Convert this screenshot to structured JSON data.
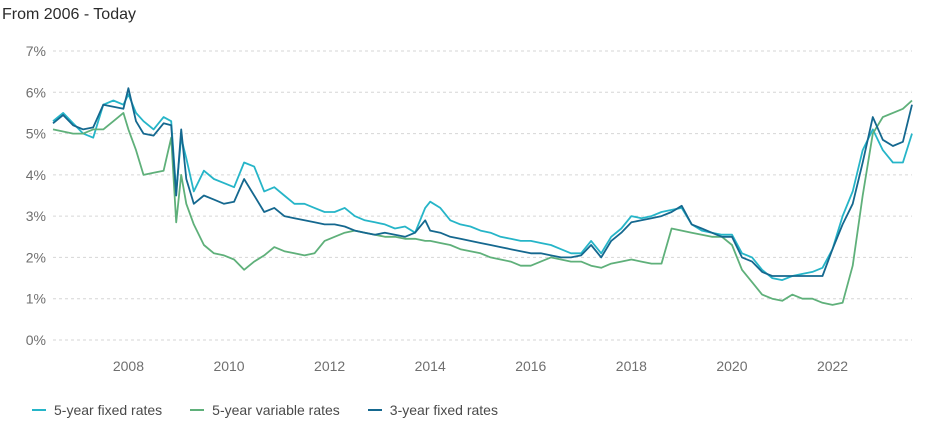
{
  "chart_data": {
    "type": "line",
    "title": "From 2006 - Today",
    "xlabel": "",
    "ylabel": "",
    "xlim": [
      2006.5,
      2023.58
    ],
    "ylim": [
      0,
      7
    ],
    "x_ticks": [
      {
        "value": 2008,
        "label": "2008"
      },
      {
        "value": 2010,
        "label": "2010"
      },
      {
        "value": 2012,
        "label": "2012"
      },
      {
        "value": 2014,
        "label": "2014"
      },
      {
        "value": 2016,
        "label": "2016"
      },
      {
        "value": 2018,
        "label": "2018"
      },
      {
        "value": 2020,
        "label": "2020"
      },
      {
        "value": 2022,
        "label": "2022"
      }
    ],
    "y_ticks": [
      {
        "value": 0,
        "label": "0%"
      },
      {
        "value": 1,
        "label": "1%"
      },
      {
        "value": 2,
        "label": "2%"
      },
      {
        "value": 3,
        "label": "3%"
      },
      {
        "value": 4,
        "label": "4%"
      },
      {
        "value": 5,
        "label": "5%"
      },
      {
        "value": 6,
        "label": "6%"
      },
      {
        "value": 7,
        "label": "7%"
      }
    ],
    "grid": true,
    "legend_position": "bottom-left",
    "series": [
      {
        "name": "5-year fixed rates",
        "color": "#26b5c8",
        "x": [
          2006.5,
          2006.7,
          2006.9,
          2007.1,
          2007.3,
          2007.5,
          2007.7,
          2007.9,
          2008.0,
          2008.15,
          2008.3,
          2008.5,
          2008.7,
          2008.85,
          2008.95,
          2009.05,
          2009.15,
          2009.3,
          2009.5,
          2009.7,
          2009.9,
          2010.1,
          2010.3,
          2010.5,
          2010.7,
          2010.9,
          2011.1,
          2011.3,
          2011.5,
          2011.7,
          2011.9,
          2012.1,
          2012.3,
          2012.5,
          2012.7,
          2012.9,
          2013.1,
          2013.3,
          2013.5,
          2013.7,
          2013.9,
          2014.0,
          2014.2,
          2014.4,
          2014.6,
          2014.8,
          2015.0,
          2015.2,
          2015.4,
          2015.6,
          2015.8,
          2016.0,
          2016.2,
          2016.4,
          2016.6,
          2016.8,
          2017.0,
          2017.2,
          2017.4,
          2017.6,
          2017.8,
          2018.0,
          2018.2,
          2018.4,
          2018.6,
          2018.8,
          2019.0,
          2019.2,
          2019.4,
          2019.6,
          2019.8,
          2020.0,
          2020.2,
          2020.4,
          2020.6,
          2020.8,
          2021.0,
          2021.2,
          2021.4,
          2021.6,
          2021.8,
          2022.0,
          2022.2,
          2022.4,
          2022.6,
          2022.8,
          2023.0,
          2023.2,
          2023.4,
          2023.58
        ],
        "y": [
          5.3,
          5.5,
          5.25,
          5.0,
          4.9,
          5.7,
          5.8,
          5.7,
          5.95,
          5.5,
          5.3,
          5.1,
          5.4,
          5.3,
          3.6,
          4.9,
          4.4,
          3.6,
          4.1,
          3.9,
          3.8,
          3.7,
          4.3,
          4.2,
          3.6,
          3.7,
          3.5,
          3.3,
          3.3,
          3.2,
          3.1,
          3.1,
          3.2,
          3.0,
          2.9,
          2.85,
          2.8,
          2.7,
          2.75,
          2.6,
          3.2,
          3.35,
          3.2,
          2.9,
          2.8,
          2.75,
          2.65,
          2.6,
          2.5,
          2.45,
          2.4,
          2.4,
          2.35,
          2.3,
          2.2,
          2.1,
          2.1,
          2.4,
          2.1,
          2.5,
          2.7,
          3.0,
          2.95,
          3.0,
          3.1,
          3.15,
          3.2,
          2.8,
          2.65,
          2.6,
          2.55,
          2.55,
          2.1,
          2.0,
          1.7,
          1.5,
          1.45,
          1.55,
          1.6,
          1.65,
          1.75,
          2.2,
          3.0,
          3.6,
          4.6,
          5.1,
          4.6,
          4.3,
          4.3,
          5.0
        ]
      },
      {
        "name": "5-year variable rates",
        "color": "#5fb07a",
        "x": [
          2006.5,
          2006.7,
          2006.9,
          2007.1,
          2007.3,
          2007.5,
          2007.7,
          2007.9,
          2008.0,
          2008.15,
          2008.3,
          2008.5,
          2008.7,
          2008.85,
          2008.95,
          2009.05,
          2009.15,
          2009.3,
          2009.5,
          2009.7,
          2009.9,
          2010.1,
          2010.3,
          2010.5,
          2010.7,
          2010.9,
          2011.1,
          2011.3,
          2011.5,
          2011.7,
          2011.9,
          2012.1,
          2012.3,
          2012.5,
          2012.7,
          2012.9,
          2013.1,
          2013.3,
          2013.5,
          2013.7,
          2013.9,
          2014.0,
          2014.2,
          2014.4,
          2014.6,
          2014.8,
          2015.0,
          2015.2,
          2015.4,
          2015.6,
          2015.8,
          2016.0,
          2016.2,
          2016.4,
          2016.6,
          2016.8,
          2017.0,
          2017.2,
          2017.4,
          2017.6,
          2017.8,
          2018.0,
          2018.2,
          2018.4,
          2018.6,
          2018.8,
          2019.0,
          2019.2,
          2019.4,
          2019.6,
          2019.8,
          2020.0,
          2020.2,
          2020.4,
          2020.6,
          2020.8,
          2021.0,
          2021.2,
          2021.4,
          2021.6,
          2021.8,
          2022.0,
          2022.2,
          2022.4,
          2022.6,
          2022.8,
          2023.0,
          2023.2,
          2023.4,
          2023.58
        ],
        "y": [
          5.1,
          5.05,
          5.0,
          5.0,
          5.1,
          5.1,
          5.3,
          5.5,
          5.1,
          4.6,
          4.0,
          4.05,
          4.1,
          4.9,
          2.85,
          4.0,
          3.3,
          2.8,
          2.3,
          2.1,
          2.05,
          1.95,
          1.7,
          1.9,
          2.05,
          2.25,
          2.15,
          2.1,
          2.05,
          2.1,
          2.4,
          2.5,
          2.6,
          2.65,
          2.6,
          2.55,
          2.5,
          2.5,
          2.45,
          2.45,
          2.4,
          2.4,
          2.35,
          2.3,
          2.2,
          2.15,
          2.1,
          2.0,
          1.95,
          1.9,
          1.8,
          1.8,
          1.9,
          2.0,
          1.95,
          1.9,
          1.9,
          1.8,
          1.75,
          1.85,
          1.9,
          1.95,
          1.9,
          1.85,
          1.85,
          2.7,
          2.65,
          2.6,
          2.55,
          2.5,
          2.5,
          2.3,
          1.7,
          1.4,
          1.1,
          1.0,
          0.95,
          1.1,
          1.0,
          1.0,
          0.9,
          0.85,
          0.9,
          1.8,
          3.5,
          5.0,
          5.4,
          5.5,
          5.6,
          5.8
        ]
      },
      {
        "name": "3-year fixed rates",
        "color": "#15688f",
        "x": [
          2006.5,
          2006.7,
          2006.9,
          2007.1,
          2007.3,
          2007.5,
          2007.7,
          2007.9,
          2008.0,
          2008.15,
          2008.3,
          2008.5,
          2008.7,
          2008.85,
          2008.95,
          2009.05,
          2009.15,
          2009.3,
          2009.5,
          2009.7,
          2009.9,
          2010.1,
          2010.3,
          2010.5,
          2010.7,
          2010.9,
          2011.1,
          2011.3,
          2011.5,
          2011.7,
          2011.9,
          2012.1,
          2012.3,
          2012.5,
          2012.7,
          2012.9,
          2013.1,
          2013.3,
          2013.5,
          2013.7,
          2013.9,
          2014.0,
          2014.2,
          2014.4,
          2014.6,
          2014.8,
          2015.0,
          2015.2,
          2015.4,
          2015.6,
          2015.8,
          2016.0,
          2016.2,
          2016.4,
          2016.6,
          2016.8,
          2017.0,
          2017.2,
          2017.4,
          2017.6,
          2017.8,
          2018.0,
          2018.2,
          2018.4,
          2018.6,
          2018.8,
          2019.0,
          2019.2,
          2019.4,
          2019.6,
          2019.8,
          2020.0,
          2020.2,
          2020.4,
          2020.6,
          2020.8,
          2021.0,
          2021.2,
          2021.4,
          2021.6,
          2021.8,
          2022.0,
          2022.2,
          2022.4,
          2022.6,
          2022.8,
          2023.0,
          2023.2,
          2023.4,
          2023.58
        ],
        "y": [
          5.25,
          5.45,
          5.2,
          5.1,
          5.15,
          5.7,
          5.65,
          5.6,
          6.1,
          5.3,
          5.0,
          4.95,
          5.25,
          5.2,
          3.5,
          5.1,
          3.9,
          3.3,
          3.5,
          3.4,
          3.3,
          3.35,
          3.9,
          3.5,
          3.1,
          3.2,
          3.0,
          2.95,
          2.9,
          2.85,
          2.8,
          2.8,
          2.75,
          2.65,
          2.6,
          2.55,
          2.6,
          2.55,
          2.5,
          2.6,
          2.9,
          2.65,
          2.6,
          2.5,
          2.45,
          2.4,
          2.35,
          2.3,
          2.25,
          2.2,
          2.15,
          2.1,
          2.1,
          2.05,
          2.0,
          2.0,
          2.05,
          2.3,
          2.0,
          2.4,
          2.6,
          2.85,
          2.9,
          2.95,
          3.0,
          3.1,
          3.25,
          2.8,
          2.7,
          2.6,
          2.5,
          2.5,
          2.0,
          1.9,
          1.65,
          1.55,
          1.55,
          1.55,
          1.55,
          1.55,
          1.55,
          2.2,
          2.8,
          3.3,
          4.3,
          5.4,
          4.85,
          4.7,
          4.8,
          5.7
        ]
      }
    ]
  }
}
